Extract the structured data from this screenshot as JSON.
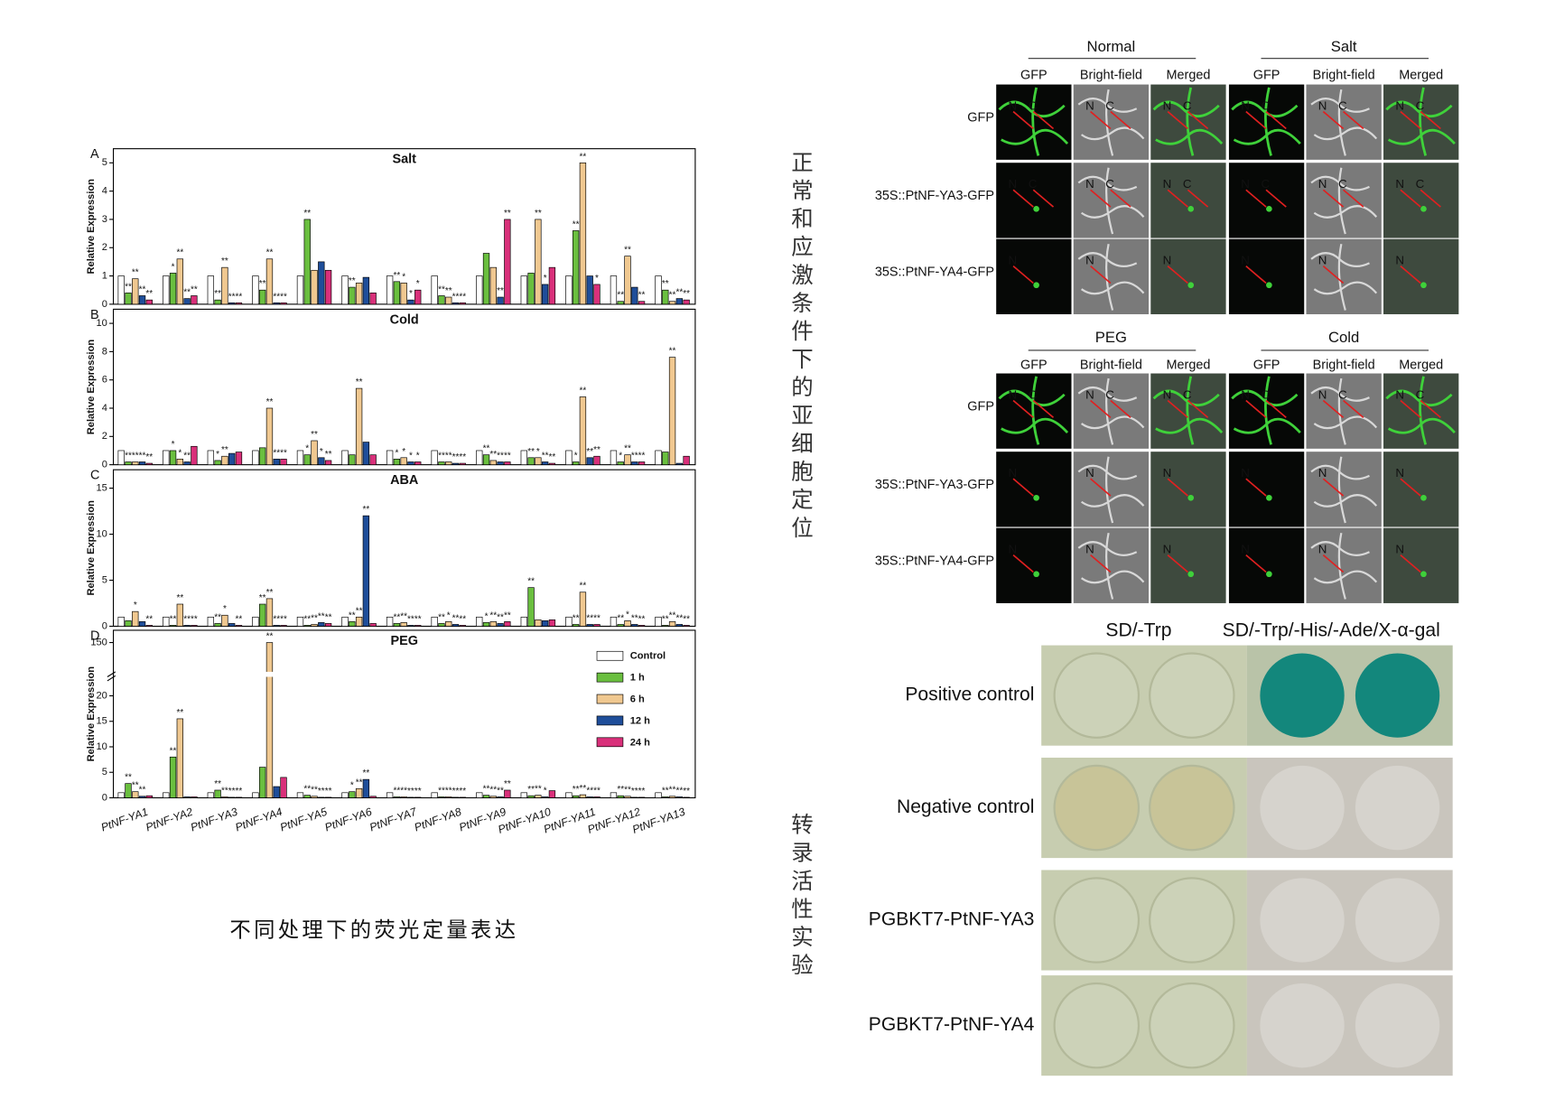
{
  "chart_data": [
    {
      "type": "bar",
      "letter": "A",
      "title": "Salt",
      "ylabel": "Relative Expression",
      "ylim": [
        0,
        5.5
      ],
      "yticks": [
        0,
        1,
        2,
        3,
        4,
        5
      ],
      "series": [
        {
          "color": "#ffffff",
          "values": [
            1,
            1,
            1,
            1,
            1,
            1,
            1,
            1,
            1,
            1,
            1,
            1,
            1
          ]
        },
        {
          "color": "#6abf3f",
          "values": [
            0.4,
            1.1,
            0.15,
            0.5,
            3.0,
            0.6,
            0.8,
            0.3,
            1.8,
            1.1,
            2.6,
            0.1,
            0.5
          ],
          "significance": [
            "**",
            "*",
            "**",
            "**",
            "**",
            "**",
            "**",
            "**",
            null,
            null,
            "**",
            "**",
            "**"
          ]
        },
        {
          "color": "#f0c890",
          "values": [
            0.9,
            1.6,
            1.3,
            1.6,
            1.2,
            0.75,
            0.75,
            0.25,
            1.3,
            3.0,
            5.0,
            1.7,
            0.1
          ],
          "significance": [
            "**",
            "**",
            "**",
            "**",
            null,
            null,
            "*",
            "**",
            null,
            "**",
            "**",
            "**",
            "**"
          ]
        },
        {
          "color": "#1f4e9a",
          "values": [
            0.3,
            0.2,
            0.05,
            0.05,
            1.5,
            0.95,
            0.15,
            0.05,
            0.25,
            0.7,
            1.0,
            0.6,
            0.2
          ],
          "significance": [
            "**",
            "**",
            "**",
            "**",
            null,
            null,
            "*",
            "**",
            "**",
            "*",
            null,
            null,
            "**"
          ]
        },
        {
          "color": "#d9307a",
          "values": [
            0.15,
            0.3,
            0.05,
            0.05,
            1.2,
            0.4,
            0.5,
            0.05,
            3.0,
            1.3,
            0.7,
            0.1,
            0.15
          ],
          "significance": [
            "**",
            "**",
            "**",
            "**",
            null,
            null,
            "*",
            "**",
            "**",
            null,
            "*",
            "**",
            "**"
          ]
        }
      ]
    },
    {
      "type": "bar",
      "letter": "B",
      "title": "Cold",
      "ylabel": "Relative Expression",
      "ylim": [
        0,
        11
      ],
      "yticks": [
        0,
        2,
        4,
        6,
        8,
        10
      ],
      "series": [
        {
          "color": "#ffffff",
          "values": [
            1,
            1,
            1,
            1,
            1,
            1,
            1,
            1,
            1,
            1,
            1,
            1,
            1
          ]
        },
        {
          "color": "#6abf3f",
          "values": [
            0.2,
            1.0,
            0.3,
            1.2,
            0.7,
            0.7,
            0.4,
            0.2,
            0.7,
            0.5,
            0.2,
            0.2,
            0.9
          ],
          "significance": [
            "**",
            "*",
            "*",
            null,
            "*",
            null,
            "*",
            "**",
            "**",
            "**",
            "*",
            "*",
            null
          ]
        },
        {
          "color": "#f0c890",
          "values": [
            0.2,
            0.4,
            0.6,
            4.0,
            1.7,
            5.4,
            0.5,
            0.2,
            0.3,
            0.5,
            4.8,
            0.7,
            7.6
          ],
          "significance": [
            "**",
            "*",
            "**",
            "**",
            "**",
            "**",
            "*",
            "**",
            "**",
            "*",
            "**",
            "**",
            "**"
          ]
        },
        {
          "color": "#1f4e9a",
          "values": [
            0.2,
            0.2,
            0.8,
            0.4,
            0.5,
            1.6,
            0.2,
            0.1,
            0.2,
            0.2,
            0.5,
            0.2,
            0.1
          ],
          "significance": [
            "**",
            "**",
            null,
            "**",
            "*",
            null,
            "*",
            "**",
            "**",
            "**",
            "**",
            "**",
            null
          ]
        },
        {
          "color": "#d9307a",
          "values": [
            0.1,
            1.3,
            0.9,
            0.4,
            0.3,
            0.7,
            0.2,
            0.1,
            0.2,
            0.1,
            0.6,
            0.2,
            0.6
          ],
          "significance": [
            "**",
            null,
            null,
            "**",
            "**",
            null,
            "*",
            "**",
            "**",
            "**",
            "**",
            "**",
            null
          ]
        }
      ]
    },
    {
      "type": "bar",
      "letter": "C",
      "title": "ABA",
      "ylabel": "Relative Expression",
      "ylim": [
        0,
        17
      ],
      "yticks": [
        0,
        5,
        10,
        15
      ],
      "series": [
        {
          "color": "#ffffff",
          "values": [
            1,
            1,
            1,
            1,
            1,
            1,
            1,
            1,
            1,
            1,
            1,
            1,
            1
          ]
        },
        {
          "color": "#6abf3f",
          "values": [
            0.6,
            0.1,
            0.3,
            2.4,
            0.1,
            0.5,
            0.3,
            0.3,
            0.4,
            4.2,
            0.2,
            0.2,
            0.1
          ],
          "significance": [
            null,
            "**",
            "**",
            "**",
            "**",
            "**",
            "**",
            "**",
            "*",
            "**",
            "**",
            "**",
            "**"
          ]
        },
        {
          "color": "#f0c890",
          "values": [
            1.6,
            2.4,
            1.2,
            3.0,
            0.2,
            1.0,
            0.4,
            0.5,
            0.5,
            0.7,
            3.7,
            0.6,
            0.5
          ],
          "significance": [
            "*",
            "**",
            "*",
            "**",
            "**",
            "**",
            "**",
            "*",
            "**",
            null,
            "**",
            "*",
            "**"
          ]
        },
        {
          "color": "#1f4e9a",
          "values": [
            0.5,
            0.1,
            0.3,
            0.1,
            0.4,
            12.0,
            0.1,
            0.2,
            0.3,
            0.6,
            0.2,
            0.2,
            0.2
          ],
          "significance": [
            null,
            "**",
            null,
            "**",
            "**",
            "**",
            "**",
            "**",
            "**",
            null,
            "**",
            "**",
            "**"
          ]
        },
        {
          "color": "#d9307a",
          "values": [
            0.1,
            0.1,
            0.1,
            0.1,
            0.3,
            0.3,
            0.1,
            0.1,
            0.5,
            0.7,
            0.2,
            0.1,
            0.1
          ],
          "significance": [
            "**",
            "**",
            "**",
            "**",
            "**",
            null,
            "**",
            "**",
            "**",
            null,
            "**",
            "**",
            "**"
          ]
        }
      ]
    },
    {
      "type": "bar",
      "letter": "D",
      "title": "PEG",
      "ylabel": "Relative Expression",
      "ylim": [
        0,
        155
      ],
      "ybreak": [
        23,
        140
      ],
      "yticks": [
        0,
        5,
        10,
        15,
        20,
        150
      ],
      "legend": "upper right",
      "categories": [
        "PtNF-YA1",
        "PtNF-YA2",
        "PtNF-YA3",
        "PtNF-YA4",
        "PtNF-YA5",
        "PtNF-YA6",
        "PtNF-YA7",
        "PtNF-YA8",
        "PtNF-YA9",
        "PtNF-YA10",
        "PtNF-YA11",
        "PtNF-YA12",
        "PtNF-YA13"
      ],
      "series": [
        {
          "name": "Control",
          "color": "#ffffff",
          "values": [
            1,
            1,
            1,
            1,
            1,
            1,
            1,
            1,
            1,
            1,
            1,
            1,
            1
          ]
        },
        {
          "name": "1 h",
          "color": "#6abf3f",
          "values": [
            2.8,
            8.0,
            1.5,
            6.0,
            0.5,
            1.2,
            0.2,
            0.2,
            0.5,
            0.4,
            0.4,
            0.4,
            0.2
          ],
          "significance": [
            "**",
            "**",
            "**",
            null,
            "**",
            "*",
            "**",
            "**",
            "**",
            "**",
            "**",
            "**",
            "**"
          ]
        },
        {
          "name": "6 h",
          "color": "#f0c890",
          "values": [
            1.2,
            15.5,
            0.2,
            150,
            0.3,
            1.8,
            0.2,
            0.2,
            0.3,
            0.5,
            0.6,
            0.3,
            0.3
          ],
          "significance": [
            "**",
            "**",
            "**",
            "**",
            "**",
            "**",
            "**",
            "**",
            "**",
            "**",
            "**",
            "**",
            "**"
          ]
        },
        {
          "name": "12 h",
          "color": "#1f4e9a",
          "values": [
            0.3,
            0.2,
            0.1,
            2.2,
            0.1,
            3.6,
            0.1,
            0.1,
            0.2,
            0.2,
            0.2,
            0.1,
            0.2
          ],
          "significance": [
            "**",
            null,
            "**",
            null,
            "**",
            "**",
            "**",
            "**",
            "**",
            "*",
            "**",
            "**",
            "**"
          ]
        },
        {
          "name": "24 h",
          "color": "#d9307a",
          "values": [
            0.4,
            0.2,
            0.1,
            4.0,
            0.1,
            0.3,
            0.1,
            0.1,
            1.5,
            1.4,
            0.2,
            0.1,
            0.1
          ],
          "significance": [
            null,
            null,
            "**",
            null,
            "**",
            null,
            "**",
            "**",
            "**",
            null,
            "**",
            "**",
            "**"
          ]
        }
      ]
    }
  ],
  "caption": "不同处理下的荧光定量表达",
  "subcellular": {
    "title": "正常和应激条件下的亚细胞定位",
    "panels": [
      {
        "groups": [
          {
            "title": "Normal",
            "columns": [
              "GFP",
              "Bright-field",
              "Merged"
            ]
          },
          {
            "title": "Salt",
            "columns": [
              "GFP",
              "Bright-field",
              "Merged"
            ]
          }
        ],
        "rows": [
          {
            "label": "GFP",
            "marks": [
              "N",
              "C"
            ]
          },
          {
            "label": "35S::PtNF-YA3-GFP",
            "marks": [
              "N",
              "C"
            ]
          },
          {
            "label": "35S::PtNF-YA4-GFP",
            "marks": [
              "N"
            ]
          }
        ]
      },
      {
        "groups": [
          {
            "title": "PEG",
            "columns": [
              "GFP",
              "Bright-field",
              "Merged"
            ]
          },
          {
            "title": "Cold",
            "columns": [
              "GFP",
              "Bright-field",
              "Merged"
            ]
          }
        ],
        "rows": [
          {
            "label": "GFP",
            "marks": [
              "N",
              "C"
            ]
          },
          {
            "label": "35S::PtNF-YA3-GFP",
            "marks": [
              "N"
            ]
          },
          {
            "label": "35S::PtNF-YA4-GFP",
            "marks": [
              "N"
            ]
          }
        ]
      }
    ]
  },
  "transcription": {
    "title": "转录活性实验",
    "columns": [
      "SD/-Trp",
      "SD/-Trp/-His/-Ade/X-α-gal"
    ],
    "rows": [
      "Positive control",
      "Negative control",
      "PGBKT7-PtNF-YA3",
      "PGBKT7-PtNF-YA4"
    ]
  }
}
